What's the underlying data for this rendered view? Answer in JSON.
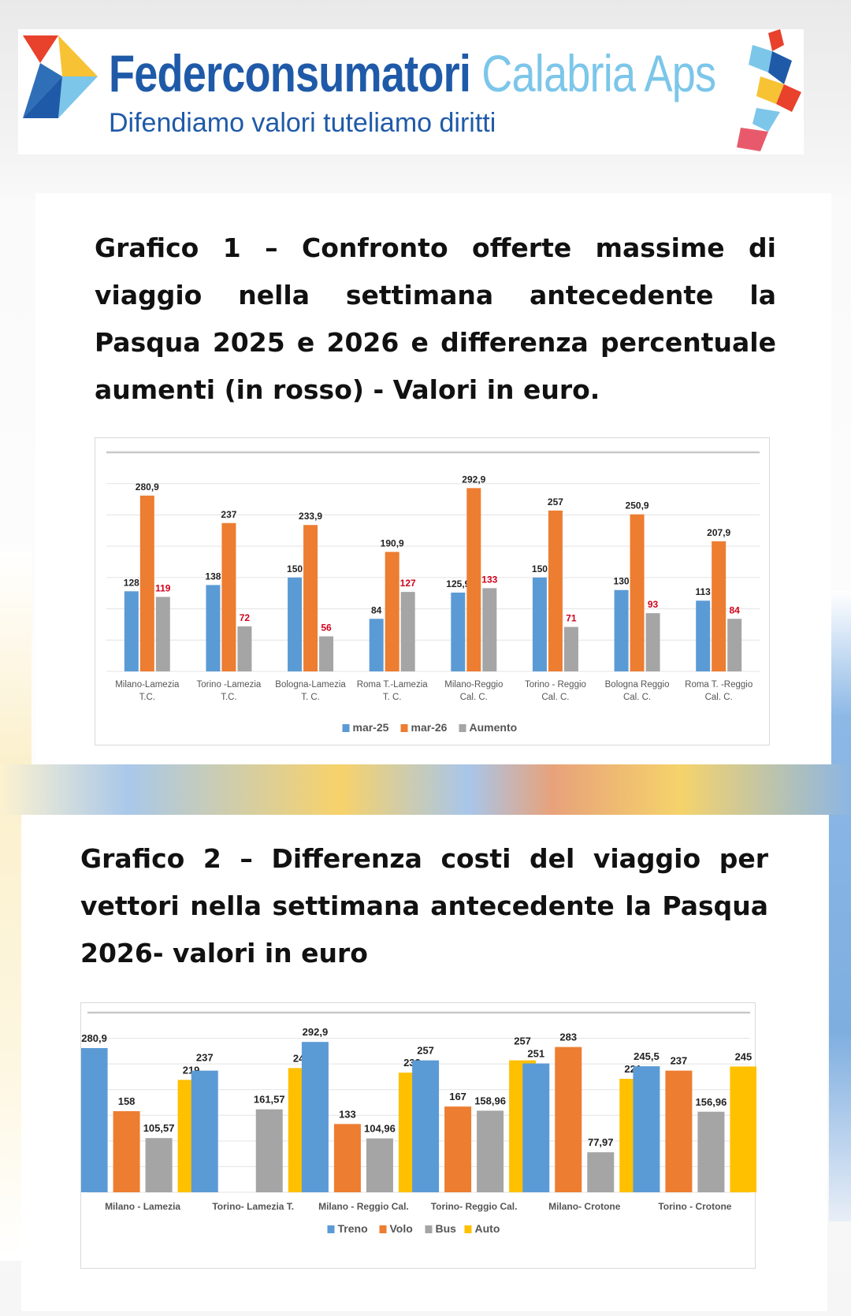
{
  "header": {
    "brand_main": "Federconsumatori",
    "brand_region": "Calabria Aps",
    "tagline": "Difendiamo valori tuteliamo diritti"
  },
  "titles": {
    "chart1": "Grafico 1 – Confronto offerte massime di viaggio nella settimana antecedente la Pasqua 2025 e 2026 e differenza percentuale aumenti (in rosso) - Valori in euro.",
    "chart2": "Grafico 2 – Differenza costi del viaggio per vettori nella settimana antecedente la Pasqua 2026- valori in euro"
  },
  "chart_data": [
    {
      "type": "bar",
      "ylim": [
        0,
        350
      ],
      "grid": true,
      "legend": "bottom",
      "categories": [
        "Milano-Lamezia T.C.",
        "Torino -Lamezia T.C.",
        "Bologna-Lamezia T. C.",
        "Roma T.-Lamezia T. C.",
        "Milano-Reggio Cal. C.",
        "Torino - Reggio Cal. C.",
        "Bologna Reggio Cal. C.",
        "Roma T. -Reggio Cal. C."
      ],
      "series": [
        {
          "name": "mar-25",
          "color": "#5b9bd5",
          "labelColor": "#222222",
          "values": [
            128,
            138,
            150,
            84,
            125.9,
            150,
            130,
            113
          ],
          "labels": [
            "128",
            "138",
            "150",
            "84",
            "125,9",
            "150",
            "130",
            "113"
          ]
        },
        {
          "name": "mar-26",
          "color": "#ed7d31",
          "labelColor": "#222222",
          "values": [
            280.9,
            237,
            233.9,
            190.9,
            292.9,
            257,
            250.9,
            207.9
          ],
          "labels": [
            "280,9",
            "237",
            "233,9",
            "190,9",
            "292,9",
            "257",
            "250,9",
            "207,9"
          ]
        },
        {
          "name": "Aumento",
          "color": "#a5a5a5",
          "labelColor": "#d0021b",
          "values": [
            119,
            72,
            56,
            127,
            133,
            71,
            93,
            84
          ],
          "labels": [
            "119",
            "72",
            "56",
            "127",
            "133",
            "71",
            "93",
            "84"
          ]
        }
      ]
    },
    {
      "type": "bar",
      "ylim": [
        0,
        350
      ],
      "grid": true,
      "legend": "bottom",
      "categories": [
        "Milano - Lamezia",
        "Torino- Lamezia T.",
        "Milano - Reggio Cal.",
        "Torino- Reggio Cal.",
        "Milano- Crotone",
        "Torino - Crotone"
      ],
      "series": [
        {
          "name": "Treno",
          "color": "#5b9bd5",
          "labelColor": "#222222",
          "values": [
            280.9,
            237,
            292.9,
            257,
            251,
            245.5
          ],
          "labels": [
            "280,9",
            "237",
            "292,9",
            "257",
            "251",
            "245,5"
          ]
        },
        {
          "name": "Volo",
          "color": "#ed7d31",
          "labelColor": "#222222",
          "values": [
            158,
            null,
            133,
            167,
            283,
            237
          ],
          "labels": [
            "158",
            "",
            "133",
            "167",
            "283",
            "237"
          ]
        },
        {
          "name": "Bus",
          "color": "#a5a5a5",
          "labelColor": "#222222",
          "values": [
            105.57,
            161.57,
            104.96,
            158.96,
            77.97,
            156.96
          ],
          "labels": [
            "105,57",
            "161,57",
            "104,96",
            "158,96",
            "77,97",
            "156,96"
          ]
        },
        {
          "name": "Auto",
          "color": "#ffc000",
          "labelColor": "#222222",
          "values": [
            219,
            242,
            233,
            257,
            221,
            245
          ],
          "labels": [
            "219",
            "242",
            "233",
            "257",
            "221",
            "245"
          ]
        }
      ]
    }
  ]
}
